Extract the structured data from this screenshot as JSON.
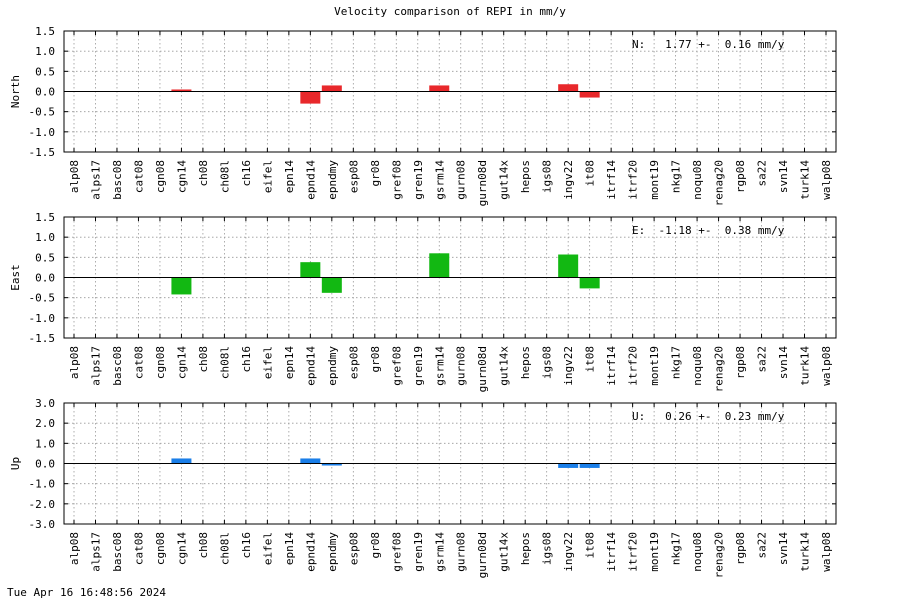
{
  "title": "Velocity comparison of REPI in mm/y",
  "footer": "Tue Apr 16 16:48:56 2024",
  "chart_data": [
    {
      "type": "bar",
      "ylabel": "North",
      "annotation": "N:   1.77 +-  0.16 mm/y",
      "ylim": [
        -1.5,
        1.5
      ],
      "yticks": [
        "1.5",
        "1.0",
        "0.5",
        "0.0",
        "-0.5",
        "-1.0",
        "-1.5"
      ],
      "grid": true,
      "color": "#e8282b",
      "categories": [
        "alp08",
        "alps17",
        "basc08",
        "cat08",
        "cgn08",
        "cgn14",
        "ch08",
        "ch08l",
        "ch16",
        "eifel",
        "epn14",
        "epnd14",
        "epndmy",
        "esp08",
        "gr08",
        "gref08",
        "gren19",
        "gsrm14",
        "gurn08",
        "gurn08d",
        "gut14x",
        "hepos",
        "igs08",
        "ingv22",
        "it08",
        "itrf14",
        "itrf20",
        "mont19",
        "nkg17",
        "noqu08",
        "renag20",
        "rgp08",
        "sa22",
        "svn14",
        "turk14",
        "walp08"
      ],
      "values": [
        0,
        0,
        0,
        0,
        0,
        0.05,
        0,
        0,
        0,
        0,
        0,
        -0.3,
        0.15,
        0,
        0,
        0,
        0,
        0.15,
        0,
        0,
        0,
        0,
        0,
        0.18,
        -0.15,
        0,
        0,
        0,
        0,
        0,
        0,
        0,
        0,
        0,
        0,
        0
      ]
    },
    {
      "type": "bar",
      "ylabel": "East",
      "annotation": "E:  -1.18 +-  0.38 mm/y",
      "ylim": [
        -1.5,
        1.5
      ],
      "yticks": [
        "1.5",
        "1.0",
        "0.5",
        "0.0",
        "-0.5",
        "-1.0",
        "-1.5"
      ],
      "grid": true,
      "color": "#12b812",
      "categories": [
        "alp08",
        "alps17",
        "basc08",
        "cat08",
        "cgn08",
        "cgn14",
        "ch08",
        "ch08l",
        "ch16",
        "eifel",
        "epn14",
        "epnd14",
        "epndmy",
        "esp08",
        "gr08",
        "gref08",
        "gren19",
        "gsrm14",
        "gurn08",
        "gurn08d",
        "gut14x",
        "hepos",
        "igs08",
        "ingv22",
        "it08",
        "itrf14",
        "itrf20",
        "mont19",
        "nkg17",
        "noqu08",
        "renag20",
        "rgp08",
        "sa22",
        "svn14",
        "turk14",
        "walp08"
      ],
      "values": [
        0,
        0,
        0,
        0,
        0,
        -0.42,
        0,
        0,
        0,
        0,
        0,
        0.38,
        -0.38,
        0,
        0,
        0,
        0,
        0.6,
        0,
        0,
        0,
        0,
        0,
        0.57,
        -0.27,
        0,
        0,
        0,
        0,
        0,
        0,
        0,
        0,
        0,
        0,
        0
      ]
    },
    {
      "type": "bar",
      "ylabel": "Up",
      "annotation": "U:   0.26 +-  0.23 mm/y",
      "ylim": [
        -3.0,
        3.0
      ],
      "yticks": [
        "3.0",
        "2.0",
        "1.0",
        "0.0",
        "-1.0",
        "-2.0",
        "-3.0"
      ],
      "grid": true,
      "color": "#1a7ee8",
      "categories": [
        "alp08",
        "alps17",
        "basc08",
        "cat08",
        "cgn08",
        "cgn14",
        "ch08",
        "ch08l",
        "ch16",
        "eifel",
        "epn14",
        "epnd14",
        "epndmy",
        "esp08",
        "gr08",
        "gref08",
        "gren19",
        "gsrm14",
        "gurn08",
        "gurn08d",
        "gut14x",
        "hepos",
        "igs08",
        "ingv22",
        "it08",
        "itrf14",
        "itrf20",
        "mont19",
        "nkg17",
        "noqu08",
        "renag20",
        "rgp08",
        "sa22",
        "svn14",
        "turk14",
        "walp08"
      ],
      "values": [
        0,
        0,
        0,
        0,
        0,
        0.25,
        0,
        0,
        0,
        0,
        0,
        0.25,
        -0.1,
        0,
        0,
        0,
        0,
        0,
        0,
        0,
        0,
        0,
        0,
        -0.22,
        -0.22,
        0,
        0,
        0,
        0,
        0,
        0,
        0,
        0,
        0,
        0,
        0
      ]
    }
  ]
}
